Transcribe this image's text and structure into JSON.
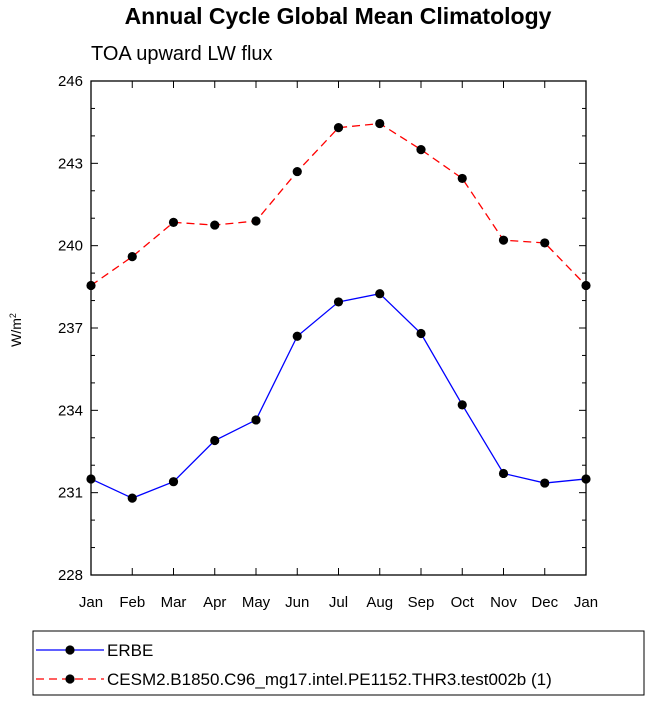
{
  "chart_data": {
    "type": "line",
    "title": "Annual Cycle Global Mean Climatology",
    "subtitle": "TOA upward LW flux",
    "ylabel": "W/m",
    "ylabel_superscript": "2",
    "xlabel": "",
    "categories": [
      "Jan",
      "Feb",
      "Mar",
      "Apr",
      "May",
      "Jun",
      "Jul",
      "Aug",
      "Sep",
      "Oct",
      "Nov",
      "Dec",
      "Jan"
    ],
    "ylim": [
      228,
      246
    ],
    "yticks": [
      "228",
      "231",
      "234",
      "237",
      "240",
      "243",
      "246"
    ],
    "grid": false,
    "legend_position": "bottom",
    "series": [
      {
        "name": "ERBE",
        "color": "#0000ff",
        "line_style": "solid",
        "marker": "filled-circle",
        "values": [
          231.5,
          230.8,
          231.4,
          232.9,
          233.65,
          236.7,
          237.95,
          238.25,
          236.8,
          234.2,
          231.7,
          231.35,
          231.5
        ]
      },
      {
        "name": "CESM2.B1850.C96_mg17.intel.PE1152.THR3.test002b (1)",
        "color": "#ff0000",
        "line_style": "dashed",
        "marker": "filled-circle",
        "values": [
          238.55,
          239.6,
          240.85,
          240.75,
          240.9,
          242.7,
          244.3,
          244.45,
          243.5,
          242.45,
          240.2,
          240.1,
          238.55
        ]
      }
    ]
  }
}
